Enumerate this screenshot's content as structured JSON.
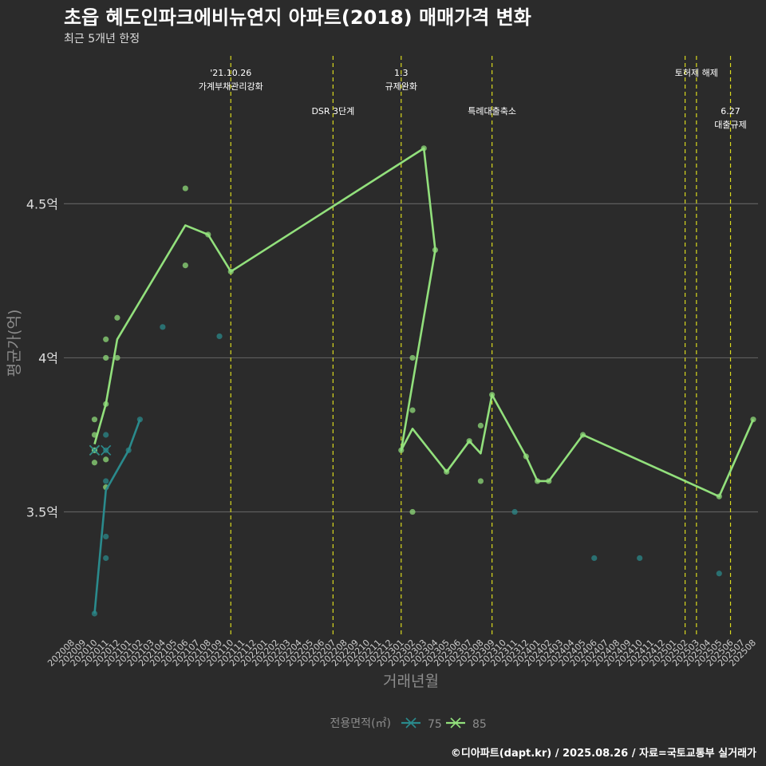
{
  "chart_data": {
    "type": "line",
    "title": "초읍 혜도인파크에비뉴연지 아파트(2018) 매매가격 변화",
    "subtitle": "최근 5개년 한정",
    "xlabel": "거래년월",
    "ylabel": "평균가(억)",
    "ylim": [
      3.1,
      4.98
    ],
    "y_ticks": [
      3.5,
      4.0,
      4.5
    ],
    "y_tick_labels": [
      "3.5억",
      "4억",
      "4.5억"
    ],
    "x_ticks": [
      "202008",
      "202009",
      "202010",
      "202011",
      "202012",
      "202101",
      "202102",
      "202103",
      "202104",
      "202105",
      "202106",
      "202107",
      "202108",
      "202109",
      "202110",
      "202111",
      "202112",
      "202201",
      "202202",
      "202203",
      "202204",
      "202205",
      "202206",
      "202207",
      "202208",
      "202209",
      "202210",
      "202211",
      "202212",
      "202301",
      "202302",
      "202303",
      "202304",
      "202305",
      "202306",
      "202307",
      "202308",
      "202309",
      "202310",
      "202311",
      "202312",
      "202401",
      "202402",
      "202403",
      "202404",
      "202405",
      "202406",
      "202407",
      "202408",
      "202409",
      "202410",
      "202411",
      "202412",
      "202501",
      "202502",
      "202503",
      "202504",
      "202505",
      "202506",
      "202507",
      "202508"
    ],
    "legend_title": "전용면적(㎡)",
    "legend_position": "bottom",
    "series": [
      {
        "name": "75",
        "color": "#2a8a8c",
        "line": [
          [
            "202010",
            3.17
          ],
          [
            "202011",
            3.57
          ],
          [
            "202101",
            3.7
          ],
          [
            "202102",
            3.8
          ]
        ],
        "points": [
          [
            "202010",
            3.17
          ],
          [
            "202010",
            3.7
          ],
          [
            "202011",
            3.75
          ],
          [
            "202011",
            3.7
          ],
          [
            "202011",
            3.6
          ],
          [
            "202011",
            3.42
          ],
          [
            "202011",
            3.35
          ],
          [
            "202101",
            3.7
          ],
          [
            "202102",
            3.8
          ],
          [
            "202104",
            4.1
          ],
          [
            "202109",
            4.07
          ],
          [
            "202311",
            3.5
          ],
          [
            "202406",
            3.35
          ],
          [
            "202410",
            3.35
          ],
          [
            "202505",
            3.3
          ]
        ]
      },
      {
        "name": "85",
        "color": "#92e07c",
        "line": [
          [
            "202010",
            3.72
          ],
          [
            "202011",
            3.85
          ],
          [
            "202012",
            4.06
          ],
          [
            "202106",
            4.43
          ],
          [
            "202108",
            4.4
          ],
          [
            "202110",
            4.28
          ],
          [
            "202303",
            4.68
          ],
          [
            "202304",
            4.35
          ],
          [
            "202301",
            3.7
          ],
          [
            "202302",
            3.77
          ],
          [
            "202305",
            3.63
          ],
          [
            "202307",
            3.73
          ],
          [
            "202308",
            3.69
          ],
          [
            "202309",
            3.88
          ],
          [
            "202312",
            3.68
          ],
          [
            "202401",
            3.6
          ],
          [
            "202402",
            3.6
          ],
          [
            "202405",
            3.75
          ],
          [
            "202505",
            3.55
          ],
          [
            "202508",
            3.8
          ]
        ],
        "points": [
          [
            "202010",
            3.8
          ],
          [
            "202010",
            3.75
          ],
          [
            "202010",
            3.7
          ],
          [
            "202010",
            3.66
          ],
          [
            "202011",
            4.06
          ],
          [
            "202011",
            4.0
          ],
          [
            "202011",
            3.85
          ],
          [
            "202011",
            3.67
          ],
          [
            "202011",
            3.58
          ],
          [
            "202012",
            4.13
          ],
          [
            "202012",
            4.0
          ],
          [
            "202106",
            4.55
          ],
          [
            "202106",
            4.3
          ],
          [
            "202108",
            4.4
          ],
          [
            "202110",
            4.28
          ],
          [
            "202303",
            4.68
          ],
          [
            "202304",
            4.35
          ],
          [
            "202301",
            3.7
          ],
          [
            "202302",
            4.0
          ],
          [
            "202302",
            3.83
          ],
          [
            "202302",
            3.5
          ],
          [
            "202305",
            3.63
          ],
          [
            "202307",
            3.73
          ],
          [
            "202308",
            3.78
          ],
          [
            "202308",
            3.6
          ],
          [
            "202309",
            3.88
          ],
          [
            "202312",
            3.68
          ],
          [
            "202401",
            3.6
          ],
          [
            "202402",
            3.6
          ],
          [
            "202405",
            3.75
          ],
          [
            "202505",
            3.55
          ],
          [
            "202508",
            3.8
          ]
        ]
      }
    ],
    "annotations": [
      {
        "x": "202110",
        "lines": [
          "'21.10.26",
          "가계부채관리강화"
        ],
        "level": "high"
      },
      {
        "x": "202207",
        "lines": [
          "DSR 3단계"
        ],
        "level": "low"
      },
      {
        "x": "202301",
        "lines": [
          "1.3",
          "규제완화"
        ],
        "level": "high"
      },
      {
        "x": "202309",
        "lines": [
          "특례대출축소"
        ],
        "level": "low"
      },
      {
        "x": "202502",
        "lines": [],
        "level": "high"
      },
      {
        "x": "202503",
        "lines": [
          "토허제 해제"
        ],
        "level": "high"
      },
      {
        "x": "202506",
        "lines": [
          "6.27",
          "대출규제"
        ],
        "level": "low"
      }
    ]
  },
  "footer": "©디아파트(dapt.kr) / 2025.08.26 / 자료=국토교통부 실거래가"
}
